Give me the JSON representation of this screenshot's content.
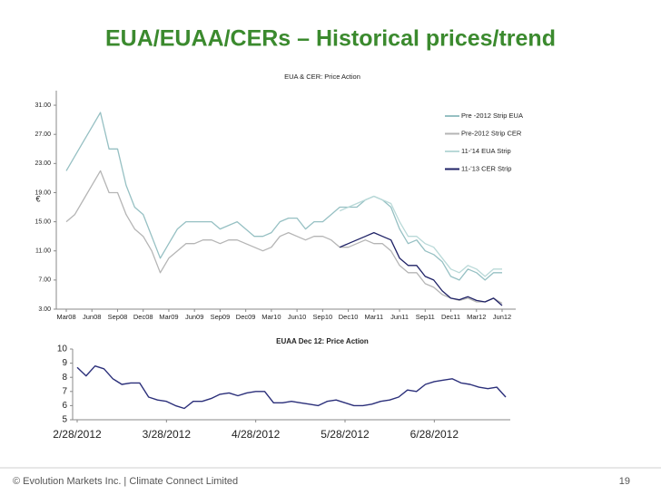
{
  "slide": {
    "title": "EUA/EUAA/CERs – Historical prices/trend",
    "footer": "© Evolution Markets Inc. | Climate Connect Limited",
    "page": "19"
  },
  "chart_data": [
    {
      "type": "line",
      "title": "EUA & CER: Price Action",
      "y_label": "€",
      "categories": [
        "Mar08",
        null,
        null,
        "Jun08",
        null,
        null,
        "Sep08",
        null,
        null,
        "Dec08",
        null,
        null,
        "Mar09",
        null,
        null,
        "Jun09",
        null,
        null,
        "Sep09",
        null,
        null,
        "Dec09",
        null,
        null,
        "Mar10",
        null,
        null,
        "Jun10",
        null,
        null,
        "Sep10",
        null,
        null,
        "Dec10",
        null,
        null,
        "Mar11",
        null,
        null,
        "Jun11",
        null,
        null,
        "Sep11",
        null,
        null,
        "Dec11",
        null,
        null,
        "Mar12",
        null,
        null,
        "Jun12"
      ],
      "ylim": [
        3,
        33
      ],
      "yticks": [
        {
          "value": 3,
          "label": "3.00"
        },
        {
          "value": 7,
          "label": "7.00"
        },
        {
          "value": 11,
          "label": "11.00"
        },
        {
          "value": 15,
          "label": "15.00"
        },
        {
          "value": 19,
          "label": "19.00"
        },
        {
          "value": 23,
          "label": "23.00"
        },
        {
          "value": 27,
          "label": "27.00"
        },
        {
          "value": 31,
          "label": "31.00"
        }
      ],
      "grid": false,
      "legend": "right",
      "series": [
        {
          "name": "Pre -2012 Strip EUA",
          "color": "#96c0c3",
          "values": [
            22,
            24,
            26,
            28,
            30,
            25,
            25,
            20,
            17,
            16,
            13,
            10,
            12,
            14,
            15,
            15,
            15,
            15,
            14,
            14.5,
            15,
            14,
            13,
            13,
            13.5,
            15,
            15.5,
            15.5,
            14,
            15,
            15,
            16,
            17,
            17,
            17,
            18,
            18.5,
            18,
            17,
            14,
            12,
            12.5,
            11,
            10.5,
            9.5,
            7.5,
            7,
            8.5,
            8,
            7,
            8,
            8
          ]
        },
        {
          "name": "Pre-2012 Strip CER",
          "color": "#b5b5b5",
          "values": [
            15,
            16,
            18,
            20,
            22,
            19,
            19,
            16,
            14,
            13,
            11,
            8,
            10,
            11,
            12,
            12,
            12.5,
            12.5,
            12,
            12.5,
            12.5,
            12,
            11.5,
            11,
            11.5,
            13,
            13.5,
            13,
            12.5,
            13,
            13,
            12.5,
            11.5,
            11.5,
            12,
            12.5,
            12,
            12,
            11,
            9,
            8,
            8,
            6.5,
            6,
            5,
            4.5,
            4.2,
            4.5,
            4,
            4,
            4.5,
            3.8
          ]
        },
        {
          "name": "11-'14 EUA Strip",
          "color": "#b9d9d8",
          "values": [
            null,
            null,
            null,
            null,
            null,
            null,
            null,
            null,
            null,
            null,
            null,
            null,
            null,
            null,
            null,
            null,
            null,
            null,
            null,
            null,
            null,
            null,
            null,
            null,
            null,
            null,
            null,
            null,
            null,
            null,
            null,
            null,
            16.5,
            17,
            17.5,
            18,
            18.5,
            18,
            17.5,
            15,
            13,
            13,
            12,
            11.5,
            10,
            8.5,
            8,
            9,
            8.5,
            7.5,
            8.5,
            8.5
          ]
        },
        {
          "name": "11-'13 CER Strip",
          "color": "#1f2266",
          "values": [
            null,
            null,
            null,
            null,
            null,
            null,
            null,
            null,
            null,
            null,
            null,
            null,
            null,
            null,
            null,
            null,
            null,
            null,
            null,
            null,
            null,
            null,
            null,
            null,
            null,
            null,
            null,
            null,
            null,
            null,
            null,
            null,
            11.5,
            12,
            12.5,
            13,
            13.5,
            13,
            12.5,
            10,
            9,
            9,
            7.5,
            7,
            5.5,
            4.5,
            4.3,
            4.7,
            4.2,
            4,
            4.5,
            3.5
          ]
        }
      ]
    },
    {
      "type": "line",
      "title": "EUAA  Dec 12: Price Action",
      "categories": [
        "2/28/2012",
        null,
        null,
        null,
        null,
        null,
        null,
        null,
        null,
        null,
        "3/28/2012",
        null,
        null,
        null,
        null,
        null,
        null,
        null,
        null,
        null,
        "4/28/2012",
        null,
        null,
        null,
        null,
        null,
        null,
        null,
        null,
        null,
        "5/28/2012",
        null,
        null,
        null,
        null,
        null,
        null,
        null,
        null,
        null,
        "6/28/2012",
        null,
        null,
        null,
        null,
        null,
        null,
        null,
        null
      ],
      "ylim": [
        5,
        10
      ],
      "yticks": [
        5,
        6,
        7,
        8,
        9,
        10
      ],
      "grid": false,
      "series": [
        {
          "name": "EUAA Dec 12",
          "color": "#2b2f7a",
          "values": [
            8.7,
            8.1,
            8.8,
            8.6,
            7.9,
            7.5,
            7.6,
            7.6,
            6.6,
            6.4,
            6.3,
            6.0,
            5.8,
            6.3,
            6.3,
            6.5,
            6.8,
            6.9,
            6.7,
            6.9,
            7.0,
            7.0,
            6.2,
            6.2,
            6.3,
            6.2,
            6.1,
            6.0,
            6.3,
            6.4,
            6.2,
            6.0,
            6.0,
            6.1,
            6.3,
            6.4,
            6.6,
            7.1,
            7.0,
            7.5,
            7.7,
            7.8,
            7.9,
            7.6,
            7.5,
            7.3,
            7.2,
            7.3,
            6.6
          ]
        }
      ]
    }
  ]
}
